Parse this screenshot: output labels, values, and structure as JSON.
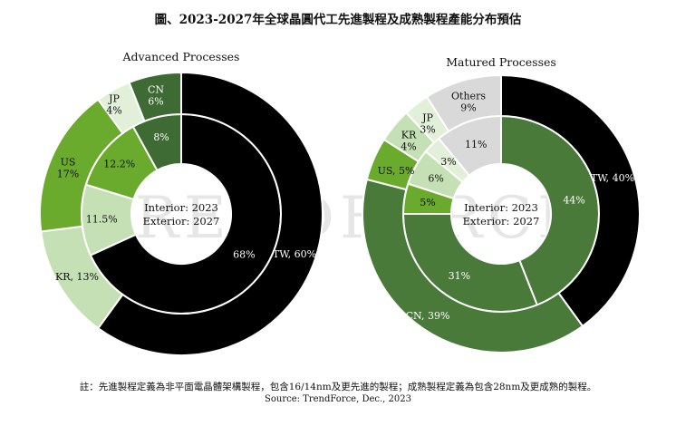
{
  "title": "圖、2023-2027年全球晶圓代工先進製程及成熟製程產能分布預估",
  "note": "註：先進製程定義為非平面電晶體架構製程，包含16/14nm及更先進的製程；成熟製程定義為包含28nm及更成熟的製程。",
  "source": "Source: TrendForce, Dec., 2023",
  "watermark": "TRENDFORCE",
  "chart_data": [
    {
      "type": "pie",
      "title": "Advanced Processes",
      "center_labels": [
        "Interior: 2023",
        "Exterior: 2027"
      ],
      "rings": [
        {
          "name": "Interior: 2023",
          "slices": [
            {
              "label": "TW",
              "value": 68,
              "display": "68%",
              "color": "#000000"
            },
            {
              "label": "KR",
              "value": 11.5,
              "display": "11.5%",
              "color": "#c5e0b4"
            },
            {
              "label": "US",
              "value": 12.2,
              "display": "12.2%",
              "color": "#6aaa2d"
            },
            {
              "label": "JP",
              "value": 0,
              "display": "",
              "color": "#e2efd9"
            },
            {
              "label": "CN",
              "value": 8,
              "display": "8%",
              "color": "#3d6b33"
            }
          ]
        },
        {
          "name": "Exterior: 2027",
          "slices": [
            {
              "label": "TW",
              "value": 60,
              "display": "TW, 60%",
              "color": "#000000"
            },
            {
              "label": "KR",
              "value": 13,
              "display": "KR, 13%",
              "color": "#c5e0b4"
            },
            {
              "label": "US",
              "value": 17,
              "display": "US\n17%",
              "color": "#6aaa2d"
            },
            {
              "label": "JP",
              "value": 4,
              "display": "JP\n4%",
              "color": "#e2efd9"
            },
            {
              "label": "CN",
              "value": 6,
              "display": "CN\n6%",
              "color": "#3d6b33"
            }
          ]
        }
      ]
    },
    {
      "type": "pie",
      "title": "Matured Processes",
      "center_labels": [
        "Interior: 2023",
        "Exterior: 2027"
      ],
      "rings": [
        {
          "name": "Interior: 2023",
          "slices": [
            {
              "label": "TW",
              "value": 44,
              "display": "44%",
              "color": "#4a7a3a"
            },
            {
              "label": "CN",
              "value": 31,
              "display": "31%",
              "color": "#4a7a3a"
            },
            {
              "label": "US",
              "value": 5,
              "display": "5%",
              "color": "#6aaa2d"
            },
            {
              "label": "KR",
              "value": 6,
              "display": "6%",
              "color": "#c5e0b4"
            },
            {
              "label": "JP",
              "value": 3,
              "display": "3%",
              "color": "#e2efd9"
            },
            {
              "label": "Others",
              "value": 11,
              "display": "11%",
              "color": "#d9d9d9"
            }
          ]
        },
        {
          "name": "Exterior: 2027",
          "slices": [
            {
              "label": "TW",
              "value": 40,
              "display": "TW, 40%",
              "color": "#000000"
            },
            {
              "label": "CN",
              "value": 39,
              "display": "CN, 39%",
              "color": "#4a7a3a"
            },
            {
              "label": "US",
              "value": 5,
              "display": "US, 5%",
              "color": "#6aaa2d"
            },
            {
              "label": "KR",
              "value": 4,
              "display": "KR\n4%",
              "color": "#c5e0b4"
            },
            {
              "label": "JP",
              "value": 3,
              "display": "JP\n3%",
              "color": "#e2efd9"
            },
            {
              "label": "Others",
              "value": 9,
              "display": "Others\n9%",
              "color": "#d9d9d9"
            }
          ]
        }
      ]
    }
  ]
}
